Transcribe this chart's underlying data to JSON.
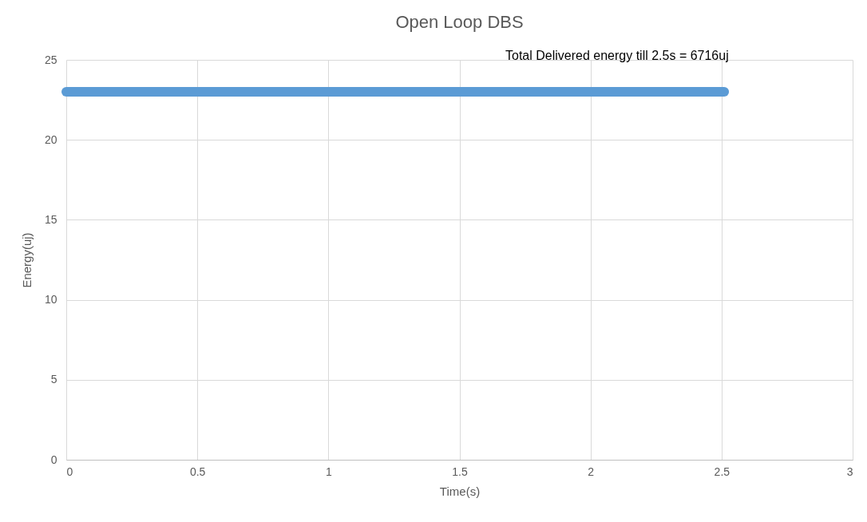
{
  "chart_data": {
    "type": "line",
    "title": "Open Loop DBS",
    "xlabel": "Time(s)",
    "ylabel": "Energy(uj)",
    "x": [
      0,
      2.51
    ],
    "series": [
      {
        "color": "#5b9bd5",
        "values": [
          23,
          23
        ]
      }
    ],
    "xlim": [
      0,
      3
    ],
    "xticks": [
      0,
      0.5,
      1,
      1.5,
      2,
      2.5,
      3
    ],
    "ylim": [
      0,
      25
    ],
    "yticks": [
      0,
      5,
      10,
      15,
      20,
      25
    ],
    "grid": true,
    "legend": false,
    "annotations": [
      "Total Delivered energy till 2.5s = 6716uj"
    ]
  }
}
